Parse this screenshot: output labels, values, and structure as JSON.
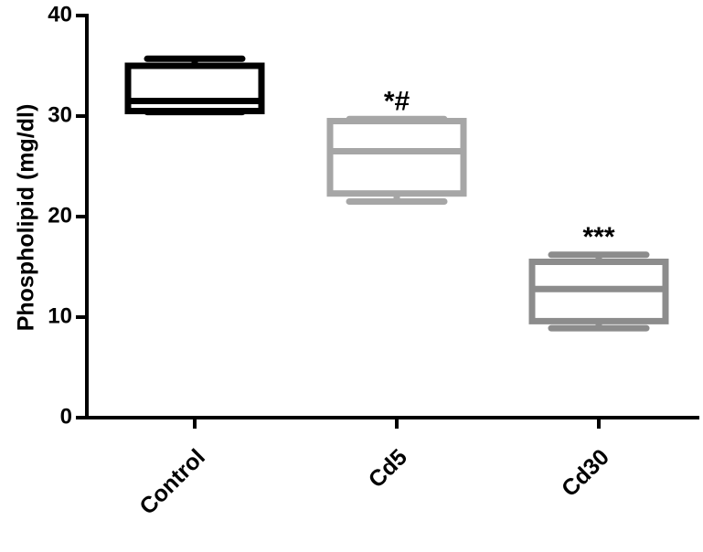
{
  "chart_data": {
    "type": "box",
    "y_label": "Phospholipid (mg/dl)",
    "categories": [
      "Control",
      "Cd5",
      "Cd30"
    ],
    "boxes": [
      {
        "min": 30.4,
        "q1": 30.5,
        "median": 31.5,
        "q3": 35,
        "max": 35.7
      },
      {
        "min": 21.5,
        "q1": 22.3,
        "median": 26.5,
        "q3": 29.5,
        "max": 29.7
      },
      {
        "min": 8.9,
        "q1": 9.6,
        "median": 12.8,
        "q3": 15.5,
        "max": 16.2
      }
    ],
    "colors": [
      "#000000",
      "#a6a6a6",
      "#8c8c8c"
    ],
    "annotations": [
      null,
      "*#",
      "***"
    ],
    "ylim": [
      0,
      40
    ],
    "yticks": [
      0,
      10,
      20,
      30,
      40
    ]
  }
}
